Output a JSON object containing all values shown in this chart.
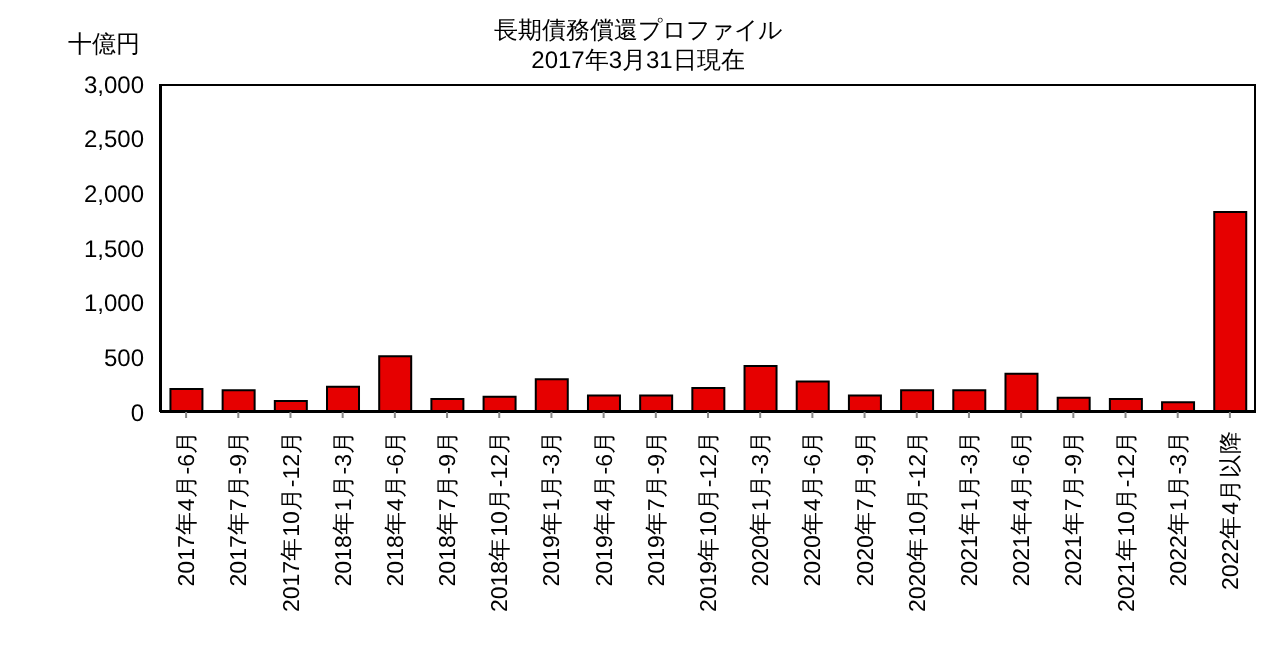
{
  "chart_data": {
    "type": "bar",
    "title": "長期債務償還プロファイル",
    "subtitle": "2017年3月31日現在",
    "ylabel": "十億円",
    "categories": [
      "2017年4月-6月",
      "2017年7月-9月",
      "2017年10月-12月",
      "2018年1月-3月",
      "2018年4月-6月",
      "2018年7月-9月",
      "2018年10月-12月",
      "2019年1月-3月",
      "2019年4月-6月",
      "2019年7月-9月",
      "2019年10月-12月",
      "2020年1月-3月",
      "2020年4月-6月",
      "2020年7月-9月",
      "2020年10月-12月",
      "2021年1月-3月",
      "2021年4月-6月",
      "2021年7月-9月",
      "2021年10月-12月",
      "2022年1月-3月",
      "2022年4月以降"
    ],
    "values": [
      210,
      200,
      100,
      230,
      510,
      120,
      140,
      300,
      150,
      150,
      220,
      420,
      280,
      150,
      200,
      200,
      350,
      130,
      120,
      90,
      1830
    ],
    "color": "#e60000",
    "ylim": [
      0,
      3000
    ],
    "yticks": [
      0,
      500,
      {
        "value": 1000,
        "label": "1,000"
      },
      {
        "value": 1500,
        "label": "1,500"
      },
      {
        "value": 2000,
        "label": "2,000"
      },
      {
        "value": 2500,
        "label": "2,500"
      },
      {
        "value": 3000,
        "label": "3,000"
      }
    ],
    "grid": false
  }
}
